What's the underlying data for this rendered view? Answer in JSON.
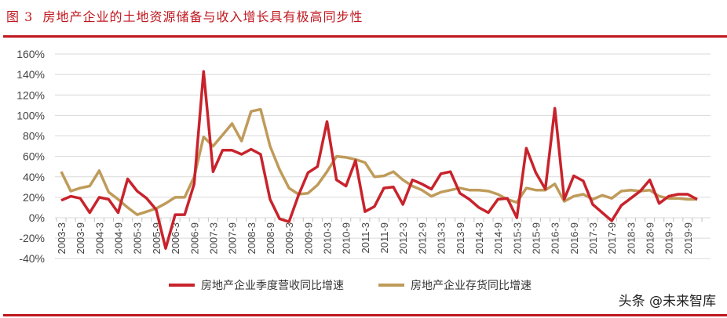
{
  "figure_label": "图 3",
  "title": "房地产企业的土地资源储备与收入增长具有极高同步性",
  "watermark": "头条 @未来智库",
  "colors": {
    "revenue": "#c8232c",
    "inventory": "#bf9b5a",
    "accent": "#c0171e",
    "grid": "#d9d9d9"
  },
  "chart_data": {
    "type": "line",
    "title": "",
    "xlabel": "",
    "ylabel": "",
    "ylim": [
      -40,
      160
    ],
    "yticks": [
      "160%",
      "140%",
      "120%",
      "100%",
      "80%",
      "60%",
      "40%",
      "20%",
      "0%",
      "-20%",
      "-40%"
    ],
    "ytick_values": [
      160,
      140,
      120,
      100,
      80,
      60,
      40,
      20,
      0,
      -20,
      -40
    ],
    "grid": true,
    "legend": "bottom",
    "xtick_labels": [
      "2003-3",
      "2003-9",
      "2004-3",
      "2004-9",
      "2005-3",
      "2005-9",
      "2006-3",
      "2006-9",
      "2007-3",
      "2007-9",
      "2008-3",
      "2008-9",
      "2009-3",
      "2009-9",
      "2010-3",
      "2010-9",
      "2011-3",
      "2011-9",
      "2012-3",
      "2012-9",
      "2013-3",
      "2013-9",
      "2014-3",
      "2014-9",
      "2015-3",
      "2015-9",
      "2016-3",
      "2016-9",
      "2017-3",
      "2017-9",
      "2018-3",
      "2018-9",
      "2019-3",
      "2019-9"
    ],
    "point_count": 68,
    "series": [
      {
        "name": "房地产企业季度营收同比增速",
        "color": "#c8232c",
        "values": [
          17,
          21,
          19,
          5,
          20,
          18,
          5,
          38,
          26,
          19,
          8,
          -30,
          3,
          3,
          33,
          143,
          45,
          66,
          66,
          62,
          67,
          62,
          18,
          -1,
          -4,
          22,
          44,
          50,
          94,
          37,
          31,
          56,
          6,
          11,
          29,
          30,
          13,
          37,
          33,
          28,
          43,
          45,
          24,
          18,
          10,
          5,
          18,
          19,
          0,
          68,
          44,
          28,
          107,
          18,
          41,
          36,
          13,
          5,
          -3,
          12,
          19,
          26,
          37,
          14,
          21,
          23,
          23,
          18
        ]
      },
      {
        "name": "房地产企业存货同比增速",
        "color": "#bf9b5a",
        "values": [
          45,
          26,
          29,
          31,
          46,
          25,
          18,
          10,
          3,
          6,
          9,
          14,
          20,
          20,
          40,
          79,
          70,
          81,
          92,
          75,
          104,
          106,
          70,
          47,
          29,
          23,
          24,
          32,
          45,
          60,
          59,
          57,
          54,
          40,
          41,
          45,
          37,
          31,
          27,
          21,
          25,
          27,
          29,
          27,
          27,
          26,
          23,
          18,
          15,
          29,
          27,
          27,
          33,
          16,
          21,
          23,
          18,
          22,
          19,
          26,
          27,
          26,
          27,
          21,
          19,
          19,
          18,
          18
        ]
      }
    ]
  }
}
